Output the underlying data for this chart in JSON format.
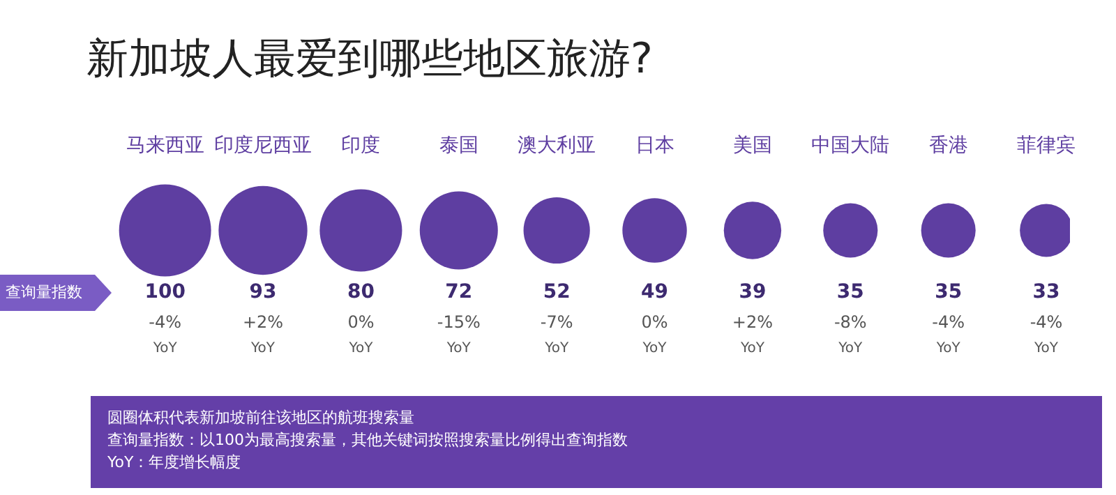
{
  "chart_data": {
    "type": "other",
    "title": "新加坡人最爱到哪些地区旅游?",
    "ylabel": "查询量指数",
    "categories": [
      "马来西亚",
      "印度尼西亚",
      "印度",
      "泰国",
      "澳大利亚",
      "日本",
      "美国",
      "中国大陆",
      "香港",
      "菲律宾"
    ],
    "values": [
      100,
      93,
      80,
      72,
      52,
      49,
      39,
      35,
      35,
      33
    ],
    "color": "#5e3ea1",
    "data_labels": true,
    "annotations": [
      {
        "text": "-4%",
        "x": "马来西亚"
      },
      {
        "text": "YoY",
        "x": "马来西亚"
      },
      {
        "text": "+2%",
        "x": "印度尼西亚"
      },
      {
        "text": "YoY",
        "x": "印度尼西亚"
      },
      {
        "text": "0%",
        "x": "印度"
      },
      {
        "text": "YoY",
        "x": "印度"
      },
      {
        "text": "-15%",
        "x": "泰国"
      },
      {
        "text": "YoY",
        "x": "泰国"
      },
      {
        "text": "-7%",
        "x": "澳大利亚"
      },
      {
        "text": "YoY",
        "x": "澳大利亚"
      },
      {
        "text": "0%",
        "x": "日本"
      },
      {
        "text": "YoY",
        "x": "日本"
      },
      {
        "text": "+2%",
        "x": "美国"
      },
      {
        "text": "YoY",
        "x": "美国"
      },
      {
        "text": "-8%",
        "x": "中国大陆"
      },
      {
        "text": "YoY",
        "x": "中国大陆"
      },
      {
        "text": "-4%",
        "x": "香港"
      },
      {
        "text": "YoY",
        "x": "香港"
      },
      {
        "text": "-4%",
        "x": "菲律宾"
      },
      {
        "text": "YoY",
        "x": "菲律宾"
      },
      "圆圈体积代表新加坡前往该地区的航班搜索量",
      "查询量指数：以100为最高搜索量，其他关键词按照搜索量比例得出查询指数",
      "YoY：年度增长幅度"
    ]
  }
}
